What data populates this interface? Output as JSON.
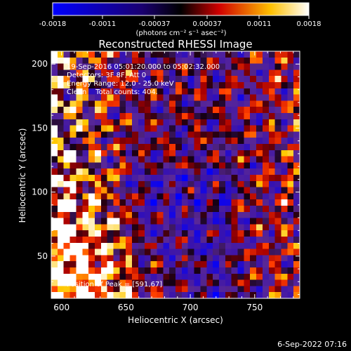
{
  "chart_data": {
    "type": "heatmap",
    "title": "Reconstructed RHESSI Image",
    "xlabel": "Heliocentric X (arcsec)",
    "ylabel": "Heliocentric Y (arcsec)",
    "xlim": [
      592,
      785
    ],
    "ylim": [
      17,
      210
    ],
    "x_ticks": [
      "600",
      "650",
      "700",
      "750"
    ],
    "x_tick_values": [
      600,
      650,
      700,
      750
    ],
    "y_ticks": [
      "50",
      "100",
      "150",
      "200"
    ],
    "y_tick_values": [
      50,
      100,
      150,
      200
    ],
    "grid": false,
    "colorbar": {
      "min": -0.0018,
      "max": 0.0018,
      "tick_labels": [
        "-0.0018",
        "-0.0011",
        "-0.00037",
        "0.00037",
        "0.0011",
        "0.0018"
      ],
      "tick_values": [
        -0.0018,
        -0.0011,
        -0.00037,
        0.00037,
        0.0011,
        0.0018
      ],
      "label": "(photons cm⁻² s⁻¹ asec⁻²)",
      "colormap_stops": [
        "#0000ff",
        "#000000",
        "#ff0000",
        "#ffff00",
        "#ffffff"
      ]
    },
    "annotations": {
      "time_range": "19-Sep-2016 05:01:20.000 to 05:02:32.000",
      "detectors": "Detectors: 3F 8F, Att 0",
      "energy_range": "Energy Range: 12.0 - 25.0 keV",
      "method_counts": "Clean    Total counts: 404.",
      "peak": "Position of Peak = [591,67]"
    },
    "peak_position": [
      591,
      67
    ],
    "grid_cells": [
      40,
      40
    ]
  },
  "footer": {
    "date": "6-Sep-2022 07:16"
  }
}
